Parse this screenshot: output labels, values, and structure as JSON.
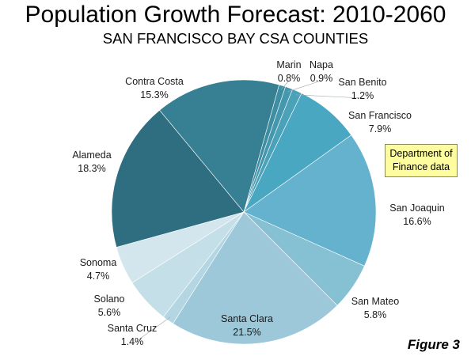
{
  "chart_data": {
    "type": "pie",
    "title": "Population Growth Forecast: 2010-2060",
    "subtitle": "SAN FRANCISCO BAY CSA COUNTIES",
    "annotation": "Department of Finance data",
    "figure_label": "Figure 3",
    "unit": "%",
    "start_angle_deg": 15.5,
    "direction": "clockwise",
    "slices": [
      {
        "label": "Marin",
        "value": 0.8,
        "display": "0.8%",
        "color": "#3e8ea3"
      },
      {
        "label": "Napa",
        "value": 0.9,
        "display": "0.9%",
        "color": "#4597ad"
      },
      {
        "label": "San Benito",
        "value": 1.2,
        "display": "1.2%",
        "color": "#4ba1b8"
      },
      {
        "label": "San Francisco",
        "value": 7.9,
        "display": "7.9%",
        "color": "#49a7c2"
      },
      {
        "label": "San Joaquin",
        "value": 16.6,
        "display": "16.6%",
        "color": "#64b2cd"
      },
      {
        "label": "San Mateo",
        "value": 5.8,
        "display": "5.8%",
        "color": "#86c0d3"
      },
      {
        "label": "Santa Clara",
        "value": 21.5,
        "display": "21.5%",
        "color": "#9cc8d9"
      },
      {
        "label": "Santa Cruz",
        "value": 1.4,
        "display": "1.4%",
        "color": "#b3d6e2"
      },
      {
        "label": "Solano",
        "value": 5.6,
        "display": "5.6%",
        "color": "#c4dfe7"
      },
      {
        "label": "Sonoma",
        "value": 4.7,
        "display": "4.7%",
        "color": "#d3e6ed"
      },
      {
        "label": "Alameda",
        "value": 18.3,
        "display": "18.3%",
        "color": "#2e6e80"
      },
      {
        "label": "Contra Costa",
        "value": 15.3,
        "display": "15.3%",
        "color": "#377f93"
      }
    ]
  }
}
